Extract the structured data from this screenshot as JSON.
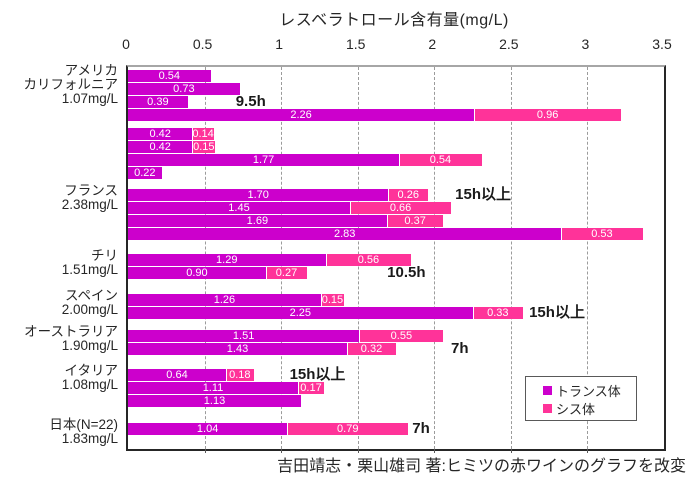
{
  "title": "レスベラトロール含有量(mg/L)",
  "caption": "吉田靖志・栗山雄司 著:ヒミツの赤ワインのグラフを改変",
  "colors": {
    "trans": "#CC00CC",
    "cis": "#FF3399"
  },
  "legend": {
    "items": [
      {
        "key": "trans",
        "label": "トランス体"
      },
      {
        "key": "cis",
        "label": "シス体"
      }
    ]
  },
  "chart_data": {
    "type": "bar",
    "orientation": "horizontal",
    "stacked": true,
    "title": "レスベラトロール含有量(mg/L)",
    "xlabel": "レスベラトロール含有量(mg/L)",
    "xlim": [
      0,
      3.5
    ],
    "xticks": [
      "0",
      "0.5",
      "1",
      "1.5",
      "2",
      "2.5",
      "3",
      "3.5"
    ],
    "xtick_values": [
      0,
      0.5,
      1,
      1.5,
      2,
      2.5,
      3,
      3.5
    ],
    "gridlines_at": [
      0.5,
      1,
      1.5,
      2,
      2.5,
      3
    ],
    "grid": true,
    "legend_position": "inside-bottom-right",
    "series_names": [
      "トランス体",
      "シス体"
    ],
    "groups": [
      {
        "label_lines": [
          "アメリカ",
          "カリフォルニア",
          "1.07mg/L"
        ],
        "bars": [
          {
            "trans": 0.54
          },
          {
            "trans": 0.73
          },
          {
            "trans": 0.39,
            "note": "9.5h"
          },
          {
            "trans": 2.26,
            "cis": 0.96
          },
          {
            "trans": 0.42,
            "cis": 0.14
          },
          {
            "trans": 0.42,
            "cis": 0.15
          },
          {
            "trans": 1.77,
            "cis": 0.54
          },
          {
            "trans": 0.22
          }
        ]
      },
      {
        "label_lines": [
          "フランス",
          "2.38mg/L"
        ],
        "bars": [
          {
            "trans": 1.7,
            "cis": 0.26,
            "note": "15h以上"
          },
          {
            "trans": 1.45,
            "cis": 0.66
          },
          {
            "trans": 1.69,
            "cis": 0.37
          },
          {
            "trans": 2.83,
            "cis": 0.53
          }
        ]
      },
      {
        "label_lines": [
          "チリ",
          "1.51mg/L"
        ],
        "bars": [
          {
            "trans": 1.29,
            "cis": 0.56
          },
          {
            "trans": 0.9,
            "cis": 0.27,
            "note": "10.5h"
          }
        ]
      },
      {
        "label_lines": [
          "スペイン",
          "2.00mg/L"
        ],
        "bars": [
          {
            "trans": 1.26,
            "cis": 0.15
          },
          {
            "trans": 2.25,
            "cis": 0.33,
            "note": "15h以上"
          }
        ]
      },
      {
        "label_lines": [
          "オーストラリア",
          "1.90mg/L"
        ],
        "bars": [
          {
            "trans": 1.51,
            "cis": 0.55
          },
          {
            "trans": 1.43,
            "cis": 0.32,
            "note": "7h"
          }
        ]
      },
      {
        "label_lines": [
          "イタリア",
          "1.08mg/L"
        ],
        "bars": [
          {
            "trans": 0.64,
            "cis": 0.18,
            "note": "15h以上"
          },
          {
            "trans": 1.11,
            "cis": 0.17
          },
          {
            "trans": 1.13
          }
        ]
      },
      {
        "label_lines": [
          "日本(N=22)",
          "1.83mg/L"
        ],
        "bars": [
          {
            "trans": 1.04,
            "cis": 0.79,
            "note": "7h"
          }
        ]
      }
    ]
  }
}
